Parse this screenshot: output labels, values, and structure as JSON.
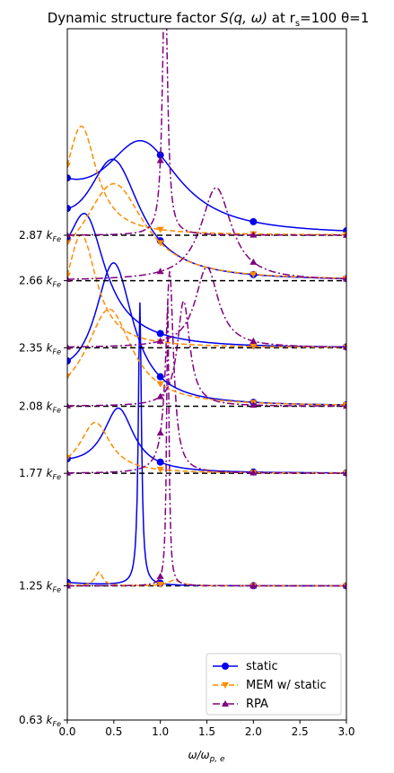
{
  "chart_data": {
    "type": "line",
    "title_prefix": "Dynamic structure factor ",
    "title_math": "S(q, ω)",
    "title_mid": " at r",
    "title_sub": "s",
    "title_suffix": "=100 θ=1",
    "xlabel_main": "ω/ω",
    "xlabel_sub": "p, e",
    "xlim": [
      0.0,
      3.0
    ],
    "x_ticks": [
      "0.0",
      "0.5",
      "1.0",
      "1.5",
      "2.0",
      "2.5",
      "3.0"
    ],
    "y_ticks": [
      {
        "value": 0.63,
        "label": "0.63",
        "unit": "k",
        "unit_sub": "Fe"
      },
      {
        "value": 1.25,
        "label": "1.25",
        "unit": "k",
        "unit_sub": "Fe"
      },
      {
        "value": 1.77,
        "label": "1.77",
        "unit": "k",
        "unit_sub": "Fe"
      },
      {
        "value": 2.08,
        "label": "2.08",
        "unit": "k",
        "unit_sub": "Fe"
      },
      {
        "value": 2.35,
        "label": "2.35",
        "unit": "k",
        "unit_sub": "Fe"
      },
      {
        "value": 2.66,
        "label": "2.66",
        "unit": "k",
        "unit_sub": "Fe"
      },
      {
        "value": 2.87,
        "label": "2.87",
        "unit": "k",
        "unit_sub": "Fe"
      }
    ],
    "legend_position": "lower-right",
    "series": [
      {
        "name": "static",
        "color": "#0000ee",
        "marker": "circle",
        "dash": "solid"
      },
      {
        "name": "MEM w/ static",
        "color": "#ff8c00",
        "marker": "triangle-down",
        "dash": "dashed"
      },
      {
        "name": "RPA",
        "color": "#800080",
        "marker": "triangle-up",
        "dash": "dashdot"
      }
    ],
    "curves": [
      {
        "q": 1.25,
        "static": {
          "peak_w": 0.78,
          "width": 0.02,
          "amp": 3.5,
          "left": 0.04
        },
        "mem": {
          "peak_w": 0.34,
          "width": 0.05,
          "amp": 0.17,
          "second_w": 1.15,
          "second_amp": 0.07
        },
        "rpa": {
          "peak_w": 1.08,
          "width": 0.015,
          "amp": 3.5
        }
      },
      {
        "q": 1.77,
        "static": {
          "peak_w": 0.55,
          "width": 0.2,
          "amp": 0.78,
          "left": 0.09
        },
        "mem": {
          "peak_w": 0.3,
          "width": 0.2,
          "amp": 0.63
        },
        "rpa": {
          "peak_w": 1.1,
          "width": 0.05,
          "amp": 2.5
        }
      },
      {
        "q": 2.08,
        "static": {
          "peak_w": 0.5,
          "width": 0.25,
          "amp": 1.7,
          "left": 0.22
        },
        "mem": {
          "peak_w": 0.45,
          "width": 0.3,
          "amp": 1.2
        },
        "rpa": {
          "peak_w": 1.25,
          "width": 0.08,
          "amp": 1.3
        }
      },
      {
        "q": 2.35,
        "static": {
          "peak_w": 0.2,
          "width": 0.25,
          "amp": 1.3,
          "left": 0.55
        },
        "mem": {
          "peak_w": 0.15,
          "width": 0.2,
          "amp": 1.4
        },
        "rpa": {
          "peak_w": 1.5,
          "width": 0.15,
          "amp": 1.0
        }
      },
      {
        "q": 2.66,
        "static": {
          "peak_w": 0.5,
          "width": 0.35,
          "amp": 1.35,
          "left": 0.45
        },
        "mem": {
          "peak_w": 0.5,
          "width": 0.4,
          "amp": 1.2
        },
        "rpa": {
          "peak_w": 1.6,
          "width": 0.2,
          "amp": 1.15
        }
      },
      {
        "q": 2.87,
        "static": {
          "peak_w": 0.8,
          "width": 0.5,
          "amp": 1.1,
          "left": 0.4
        },
        "mem": {
          "peak_w": 0.15,
          "width": 0.2,
          "amp": 1.35
        },
        "rpa": {
          "peak_w": 1.05,
          "width": 0.03,
          "amp": 3.5
        }
      }
    ]
  }
}
